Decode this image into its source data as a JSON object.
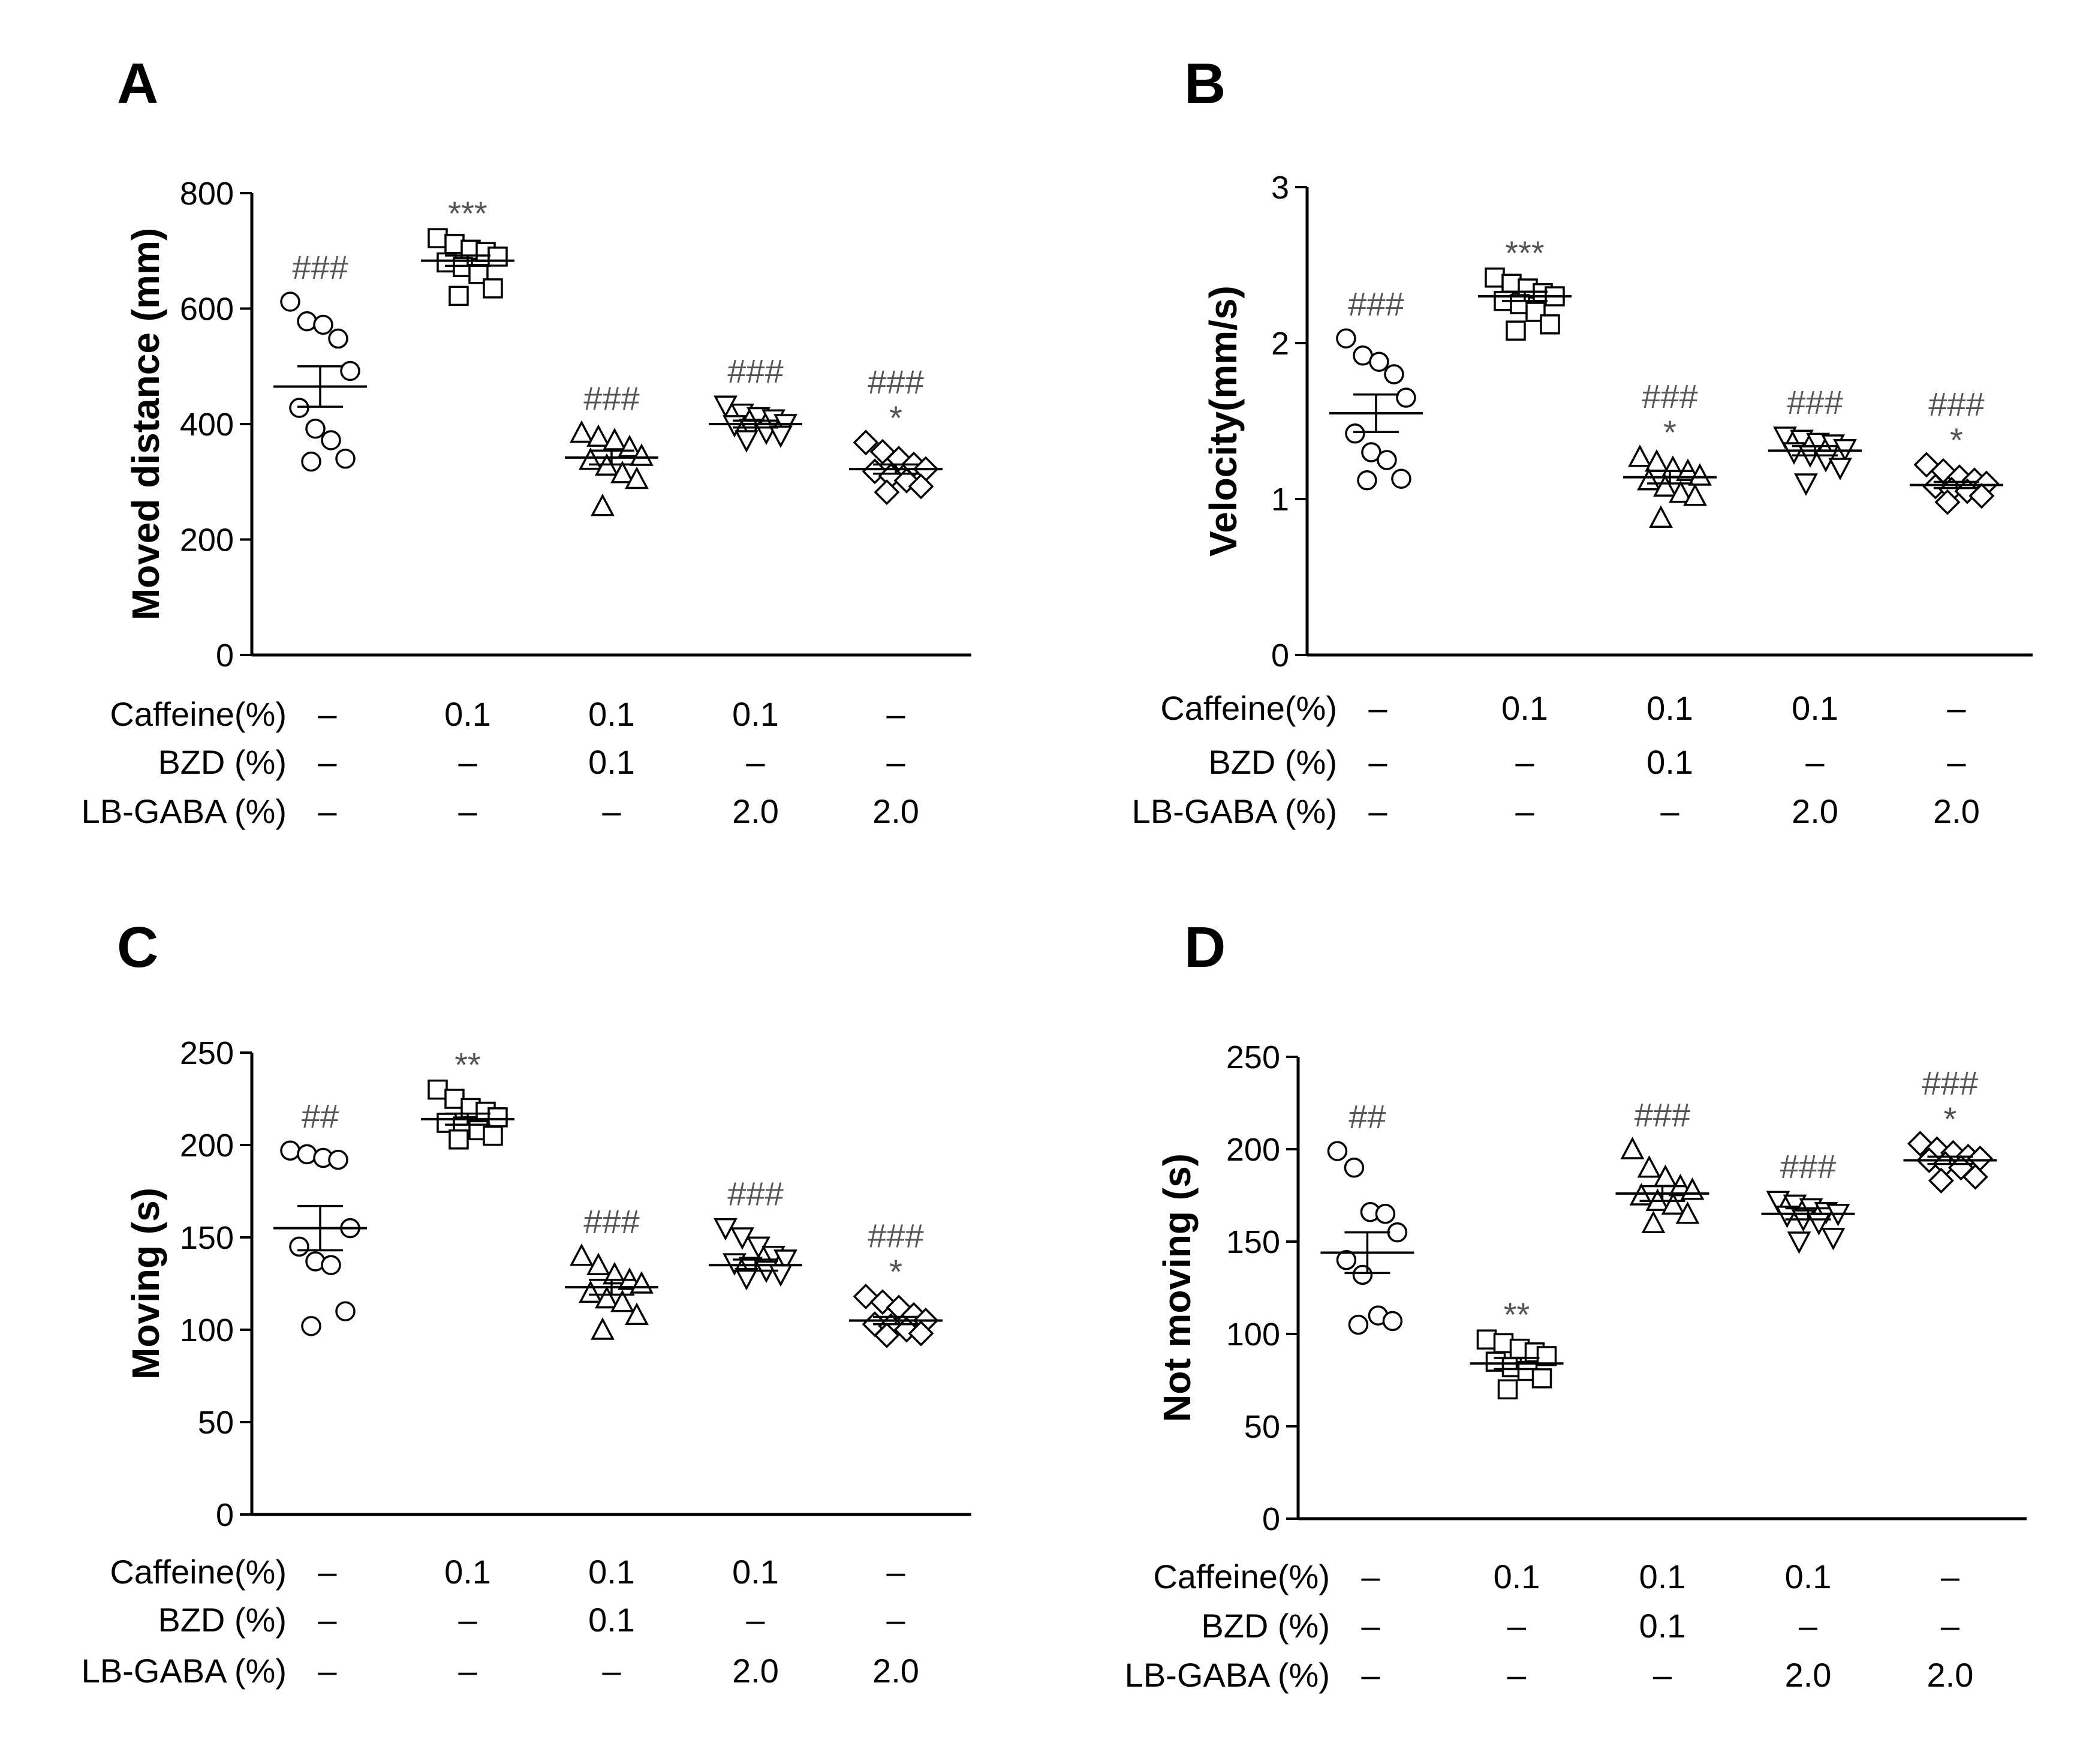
{
  "figure": {
    "id": "locomotor-activity-figure"
  },
  "rows": {
    "labels": [
      "Caffeine(%)",
      "BZD (%)",
      "LB-GABA (%)"
    ],
    "values": [
      [
        "–",
        "0.1",
        "0.1",
        "0.1",
        "–"
      ],
      [
        "–",
        "–",
        "0.1",
        "–",
        "–"
      ],
      [
        "–",
        "–",
        "–",
        "2.0",
        "2.0"
      ]
    ]
  },
  "chart_data": [
    {
      "panel": "A",
      "type": "scatter",
      "ylabel": "Moved distance (mm)",
      "ylim": [
        0,
        800
      ],
      "yticks": [
        0,
        200,
        400,
        600,
        800
      ],
      "markers": [
        "circle",
        "square",
        "triangle",
        "triangle-down",
        "diamond"
      ],
      "groups": [
        {
          "points": [
            612,
            578,
            572,
            548,
            492,
            428,
            392,
            372,
            340,
            335
          ],
          "mean": 465,
          "sem": 35,
          "hash": "###",
          "star": ""
        },
        {
          "points": [
            722,
            712,
            702,
            698,
            690,
            680,
            672,
            660,
            635,
            622
          ],
          "mean": 683,
          "sem": 9,
          "hash": "",
          "star": "***"
        },
        {
          "points": [
            385,
            378,
            372,
            360,
            345,
            338,
            328,
            315,
            305,
            258
          ],
          "mean": 342,
          "sem": 12,
          "hash": "###",
          "star": ""
        },
        {
          "points": [
            432,
            418,
            412,
            408,
            400,
            398,
            392,
            385,
            380,
            372
          ],
          "mean": 400,
          "sem": 6,
          "hash": "###",
          "star": ""
        },
        {
          "points": [
            368,
            352,
            340,
            330,
            322,
            318,
            310,
            302,
            292,
            282
          ],
          "mean": 322,
          "sem": 8,
          "hash": "###",
          "star": "*"
        }
      ]
    },
    {
      "panel": "B",
      "type": "scatter",
      "ylabel": "Velocity(mm/s)",
      "ylim": [
        0,
        3
      ],
      "yticks": [
        0,
        1,
        2,
        3
      ],
      "markers": [
        "circle",
        "square",
        "triangle",
        "triangle-down",
        "diamond"
      ],
      "groups": [
        {
          "points": [
            2.03,
            1.92,
            1.88,
            1.8,
            1.65,
            1.42,
            1.3,
            1.25,
            1.13,
            1.12
          ],
          "mean": 1.55,
          "sem": 0.12,
          "hash": "###",
          "star": ""
        },
        {
          "points": [
            2.42,
            2.38,
            2.35,
            2.32,
            2.3,
            2.27,
            2.25,
            2.2,
            2.12,
            2.08
          ],
          "mean": 2.3,
          "sem": 0.03,
          "hash": "",
          "star": "***"
        },
        {
          "points": [
            1.27,
            1.24,
            1.2,
            1.18,
            1.15,
            1.12,
            1.08,
            1.04,
            1.02,
            0.88
          ],
          "mean": 1.14,
          "sem": 0.04,
          "hash": "###",
          "star": "*"
        },
        {
          "points": [
            1.4,
            1.38,
            1.36,
            1.35,
            1.32,
            1.3,
            1.28,
            1.25,
            1.2,
            1.1
          ],
          "mean": 1.31,
          "sem": 0.03,
          "hash": "###",
          "star": ""
        },
        {
          "points": [
            1.22,
            1.18,
            1.14,
            1.12,
            1.1,
            1.08,
            1.06,
            1.05,
            1.02,
            0.98
          ],
          "mean": 1.09,
          "sem": 0.02,
          "hash": "###",
          "star": "*"
        }
      ]
    },
    {
      "panel": "C",
      "type": "scatter",
      "ylabel": "Moving (s)",
      "ylim": [
        0,
        250
      ],
      "yticks": [
        0,
        50,
        100,
        150,
        200,
        250
      ],
      "markers": [
        "circle",
        "square",
        "triangle",
        "triangle-down",
        "diamond"
      ],
      "groups": [
        {
          "points": [
            197,
            195,
            193,
            192,
            155,
            145,
            137,
            135,
            110,
            102
          ],
          "mean": 155,
          "sem": 12,
          "hash": "##",
          "star": ""
        },
        {
          "points": [
            230,
            225,
            220,
            218,
            215,
            212,
            210,
            208,
            205,
            203
          ],
          "mean": 214,
          "sem": 3,
          "hash": "",
          "star": "**"
        },
        {
          "points": [
            140,
            135,
            130,
            127,
            125,
            120,
            117,
            115,
            108,
            100
          ],
          "mean": 123,
          "sem": 4,
          "hash": "###",
          "star": ""
        },
        {
          "points": [
            155,
            150,
            145,
            140,
            138,
            136,
            134,
            132,
            130,
            128
          ],
          "mean": 135,
          "sem": 3,
          "hash": "###",
          "star": ""
        },
        {
          "points": [
            118,
            115,
            112,
            108,
            105,
            103,
            102,
            100,
            98,
            97
          ],
          "mean": 105,
          "sem": 2,
          "hash": "###",
          "star": "*"
        }
      ]
    },
    {
      "panel": "D",
      "type": "scatter",
      "ylabel": "Not moving (s)",
      "ylim": [
        0,
        250
      ],
      "yticks": [
        0,
        50,
        100,
        150,
        200,
        250
      ],
      "markers": [
        "circle",
        "square",
        "triangle",
        "triangle-down",
        "diamond"
      ],
      "groups": [
        {
          "points": [
            199,
            190,
            166,
            165,
            155,
            140,
            132,
            110,
            107,
            105
          ],
          "mean": 144,
          "sem": 11,
          "hash": "##",
          "star": ""
        },
        {
          "points": [
            97,
            95,
            92,
            90,
            88,
            85,
            82,
            80,
            76,
            70
          ],
          "mean": 84,
          "sem": 3,
          "hash": "",
          "star": "**"
        },
        {
          "points": [
            200,
            190,
            185,
            180,
            178,
            175,
            172,
            170,
            165,
            160
          ],
          "mean": 176,
          "sem": 4,
          "hash": "###",
          "star": ""
        },
        {
          "points": [
            172,
            170,
            168,
            166,
            165,
            164,
            162,
            160,
            152,
            150
          ],
          "mean": 165,
          "sem": 3,
          "hash": "###",
          "star": ""
        },
        {
          "points": [
            203,
            200,
            198,
            196,
            195,
            194,
            192,
            190,
            185,
            183
          ],
          "mean": 194,
          "sem": 2,
          "hash": "###",
          "star": "*"
        }
      ]
    }
  ]
}
